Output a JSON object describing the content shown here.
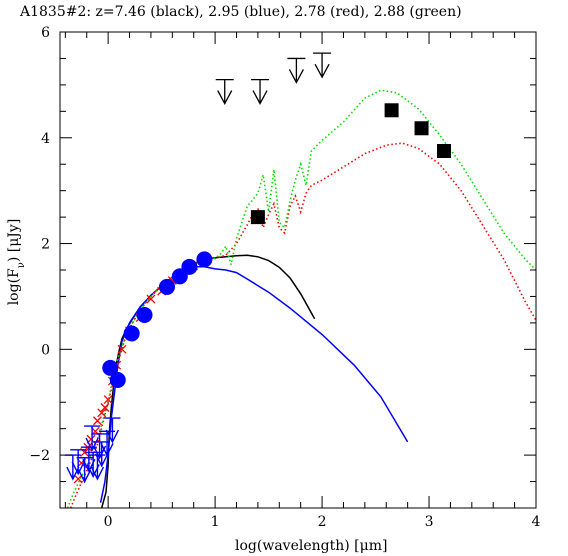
{
  "chart_data": {
    "type": "scatter",
    "title": "A1835#2: z=7.46 (black), 2.95 (blue), 2.78 (red), 2.88 (green)",
    "xlabel": "log(wavelength) [μm]",
    "ylabel": "log(F_ν) [μJy]",
    "xlim": [
      -0.45,
      4.0
    ],
    "ylim": [
      -3.0,
      6.0
    ],
    "x_ticks": [
      0,
      1,
      2,
      3,
      4
    ],
    "y_ticks": [
      -2,
      0,
      2,
      4,
      6
    ],
    "grid": false,
    "colors": {
      "black": "#000000",
      "blue": "#0000ff",
      "red": "#ff0000",
      "green": "#00dd00"
    },
    "series": [
      {
        "name": "z=7.46 (black)",
        "color": "#000000",
        "style": "solid",
        "type": "line",
        "points": [
          [
            -0.06,
            -3.0
          ],
          [
            -0.02,
            -2.7
          ],
          [
            0.0,
            -2.2
          ],
          [
            0.01,
            -1.6
          ],
          [
            0.03,
            -1.1
          ],
          [
            0.05,
            -0.7
          ],
          [
            0.07,
            -0.35
          ],
          [
            0.1,
            -0.05
          ],
          [
            0.13,
            0.2
          ],
          [
            0.17,
            0.38
          ],
          [
            0.22,
            0.55
          ],
          [
            0.3,
            0.8
          ],
          [
            0.4,
            1.02
          ],
          [
            0.5,
            1.2
          ],
          [
            0.6,
            1.36
          ],
          [
            0.7,
            1.5
          ],
          [
            0.8,
            1.62
          ],
          [
            0.9,
            1.7
          ],
          [
            1.0,
            1.73
          ],
          [
            1.1,
            1.75
          ],
          [
            1.2,
            1.77
          ],
          [
            1.3,
            1.78
          ],
          [
            1.4,
            1.75
          ],
          [
            1.5,
            1.68
          ],
          [
            1.6,
            1.55
          ],
          [
            1.7,
            1.35
          ],
          [
            1.8,
            1.05
          ],
          [
            1.93,
            0.58
          ]
        ]
      },
      {
        "name": "z=2.95 (blue)",
        "color": "#0000ff",
        "style": "solid",
        "type": "line",
        "points": [
          [
            -0.07,
            -2.9
          ],
          [
            -0.03,
            -2.5
          ],
          [
            0.0,
            -2.0
          ],
          [
            0.03,
            -1.3
          ],
          [
            0.06,
            -0.8
          ],
          [
            0.09,
            -0.3
          ],
          [
            0.13,
            0.15
          ],
          [
            0.2,
            0.5
          ],
          [
            0.3,
            0.8
          ],
          [
            0.4,
            1.02
          ],
          [
            0.5,
            1.2
          ],
          [
            0.6,
            1.36
          ],
          [
            0.7,
            1.48
          ],
          [
            0.8,
            1.56
          ],
          [
            0.9,
            1.56
          ],
          [
            1.0,
            1.52
          ],
          [
            1.1,
            1.5
          ],
          [
            1.2,
            1.45
          ],
          [
            1.3,
            1.33
          ],
          [
            1.5,
            1.08
          ],
          [
            1.7,
            0.78
          ],
          [
            2.0,
            0.28
          ],
          [
            2.3,
            -0.3
          ],
          [
            2.55,
            -0.9
          ],
          [
            2.8,
            -1.75
          ]
        ]
      },
      {
        "name": "z=2.78 (red)",
        "color": "#ff0000",
        "style": "dotted",
        "type": "line",
        "points": [
          [
            -0.35,
            -3.0
          ],
          [
            -0.3,
            -2.75
          ],
          [
            -0.2,
            -2.3
          ],
          [
            -0.1,
            -1.8
          ],
          [
            0.0,
            -1.0
          ],
          [
            0.05,
            -0.6
          ],
          [
            0.1,
            -0.2
          ],
          [
            0.15,
            0.15
          ],
          [
            0.2,
            0.4
          ],
          [
            0.3,
            0.75
          ],
          [
            0.4,
            1.0
          ],
          [
            0.5,
            1.2
          ],
          [
            0.6,
            1.35
          ],
          [
            0.7,
            1.5
          ],
          [
            0.8,
            1.6
          ],
          [
            0.9,
            1.7
          ],
          [
            1.0,
            1.72
          ],
          [
            1.1,
            1.78
          ],
          [
            1.2,
            2.0
          ],
          [
            1.3,
            2.35
          ],
          [
            1.35,
            2.55
          ],
          [
            1.4,
            2.65
          ],
          [
            1.45,
            2.3
          ],
          [
            1.5,
            2.55
          ],
          [
            1.55,
            2.75
          ],
          [
            1.6,
            2.3
          ],
          [
            1.65,
            2.2
          ],
          [
            1.7,
            2.7
          ],
          [
            1.75,
            2.9
          ],
          [
            1.8,
            2.6
          ],
          [
            1.85,
            2.95
          ],
          [
            1.9,
            3.1
          ],
          [
            2.0,
            3.2
          ],
          [
            2.2,
            3.45
          ],
          [
            2.4,
            3.7
          ],
          [
            2.6,
            3.86
          ],
          [
            2.75,
            3.9
          ],
          [
            2.9,
            3.8
          ],
          [
            3.1,
            3.5
          ],
          [
            3.3,
            3.0
          ],
          [
            3.5,
            2.35
          ],
          [
            3.7,
            1.7
          ],
          [
            3.9,
            0.9
          ],
          [
            4.0,
            0.55
          ]
        ]
      },
      {
        "name": "z=2.88 (green)",
        "color": "#00dd00",
        "style": "dotted",
        "type": "line",
        "points": [
          [
            -0.38,
            -3.0
          ],
          [
            -0.32,
            -2.7
          ],
          [
            -0.2,
            -2.2
          ],
          [
            -0.1,
            -1.7
          ],
          [
            0.0,
            -1.0
          ],
          [
            0.05,
            -0.5
          ],
          [
            0.1,
            -0.1
          ],
          [
            0.2,
            0.4
          ],
          [
            0.3,
            0.75
          ],
          [
            0.4,
            1.0
          ],
          [
            0.5,
            1.2
          ],
          [
            0.6,
            1.35
          ],
          [
            0.7,
            1.5
          ],
          [
            0.8,
            1.6
          ],
          [
            0.9,
            1.7
          ],
          [
            1.0,
            1.72
          ],
          [
            1.05,
            1.8
          ],
          [
            1.1,
            1.95
          ],
          [
            1.15,
            1.6
          ],
          [
            1.2,
            2.1
          ],
          [
            1.3,
            2.7
          ],
          [
            1.4,
            2.95
          ],
          [
            1.45,
            3.3
          ],
          [
            1.5,
            2.6
          ],
          [
            1.55,
            3.4
          ],
          [
            1.6,
            2.4
          ],
          [
            1.65,
            2.3
          ],
          [
            1.7,
            2.8
          ],
          [
            1.75,
            3.2
          ],
          [
            1.8,
            3.5
          ],
          [
            1.85,
            3.1
          ],
          [
            1.9,
            3.75
          ],
          [
            2.0,
            3.95
          ],
          [
            2.2,
            4.3
          ],
          [
            2.4,
            4.75
          ],
          [
            2.55,
            4.9
          ],
          [
            2.7,
            4.85
          ],
          [
            2.9,
            4.55
          ],
          [
            3.1,
            4.05
          ],
          [
            3.3,
            3.5
          ],
          [
            3.5,
            2.85
          ],
          [
            3.7,
            2.2
          ],
          [
            3.9,
            1.7
          ],
          [
            4.0,
            1.5
          ]
        ]
      }
    ],
    "blue_circles": [
      [
        0.02,
        -0.35
      ],
      [
        0.09,
        -0.58
      ],
      [
        0.22,
        0.3
      ],
      [
        0.34,
        0.65
      ],
      [
        0.55,
        1.18
      ],
      [
        0.67,
        1.38
      ],
      [
        0.76,
        1.56
      ],
      [
        0.9,
        1.7
      ]
    ],
    "red_crosses": [
      [
        -0.28,
        -2.45
      ],
      [
        -0.25,
        -2.15
      ],
      [
        -0.22,
        -1.95
      ],
      [
        -0.19,
        -1.85
      ],
      [
        -0.16,
        -1.7
      ],
      [
        -0.12,
        -1.55
      ],
      [
        -0.1,
        -1.35
      ],
      [
        -0.06,
        -1.2
      ],
      [
        -0.03,
        -1.1
      ],
      [
        0.0,
        -0.95
      ],
      [
        0.04,
        -0.6
      ],
      [
        0.08,
        -0.3
      ],
      [
        0.13,
        0.0
      ],
      [
        0.2,
        0.35
      ],
      [
        0.3,
        0.6
      ],
      [
        0.4,
        0.95
      ],
      [
        0.5,
        1.1
      ],
      [
        0.6,
        1.3
      ],
      [
        0.7,
        1.45
      ],
      [
        0.8,
        1.58
      ]
    ],
    "blue_upper_limits": [
      [
        -0.33,
        -2.0
      ],
      [
        -0.28,
        -1.9
      ],
      [
        -0.22,
        -2.05
      ],
      [
        -0.18,
        -1.85
      ],
      [
        -0.14,
        -1.95
      ],
      [
        -0.1,
        -2.0
      ],
      [
        -0.06,
        -1.75
      ],
      [
        -0.01,
        -1.55
      ],
      [
        -0.15,
        -1.45
      ],
      [
        -0.08,
        -1.6
      ],
      [
        0.04,
        -1.3
      ]
    ],
    "black_squares": [
      [
        1.4,
        2.5
      ],
      [
        2.65,
        4.52
      ],
      [
        2.93,
        4.18
      ],
      [
        3.14,
        3.75
      ]
    ],
    "black_upper_limits": [
      [
        1.09,
        5.1
      ],
      [
        1.42,
        5.1
      ],
      [
        1.76,
        5.5
      ],
      [
        2.0,
        5.6
      ]
    ]
  }
}
